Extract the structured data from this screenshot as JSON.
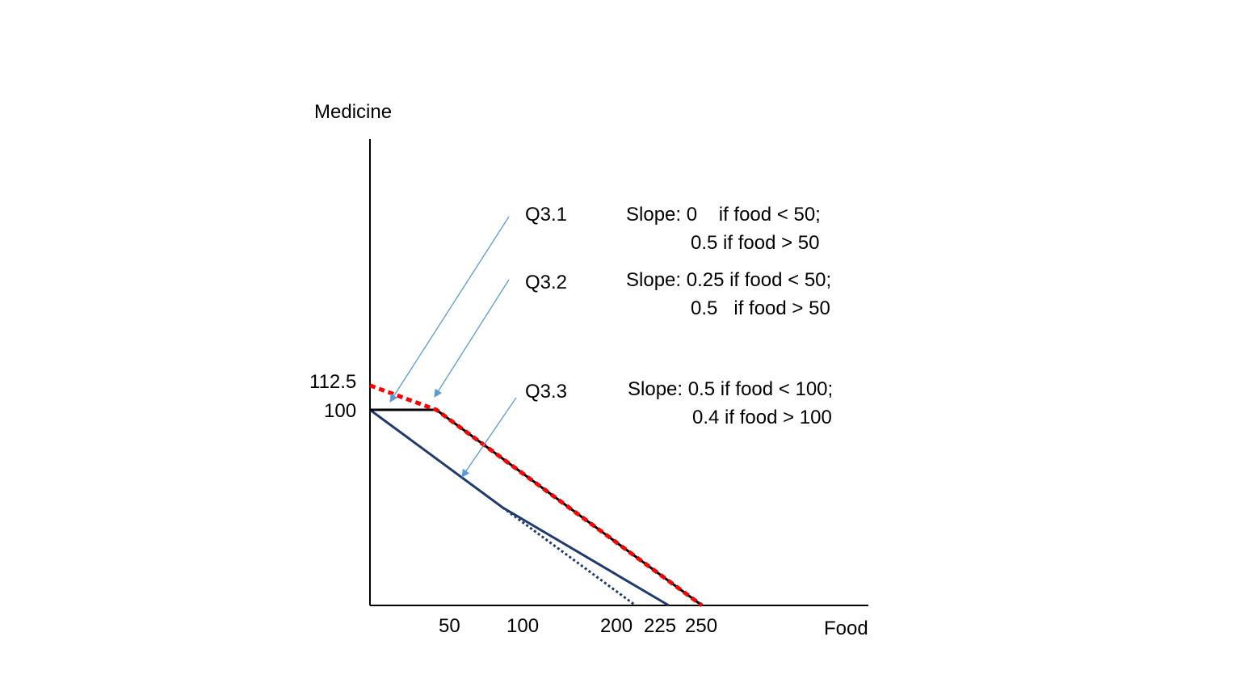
{
  "axes": {
    "y_label": "Medicine",
    "x_label": "Food",
    "y_ticks": [
      "112.5",
      "100"
    ],
    "x_ticks": [
      "50",
      "100",
      "200",
      "225",
      "250"
    ]
  },
  "questions": [
    {
      "label": "Q3.1",
      "slope_lines": [
        "Slope: 0    if food < 50;",
        "0.5 if food > 50"
      ]
    },
    {
      "label": "Q3.2",
      "slope_lines": [
        "Slope: 0.25 if food < 50;",
        "0.5   if food > 50"
      ]
    },
    {
      "label": "Q3.3",
      "slope_lines": [
        "Slope: 0.5 if food < 100;",
        "0.4 if food > 100"
      ]
    }
  ],
  "colors": {
    "q31_line": "#000000",
    "q32_line": "#ff0000",
    "q33_line": "#1f3a6e",
    "arrow": "#5b9bd5",
    "axis": "#000000"
  },
  "chart_data": {
    "type": "line",
    "xlabel": "Food",
    "ylabel": "Medicine",
    "series": [
      {
        "name": "Q3.1",
        "style": "solid",
        "x": [
          0,
          50,
          250
        ],
        "y": [
          100,
          100,
          0
        ]
      },
      {
        "name": "Q3.2",
        "style": "dotted",
        "x": [
          0,
          50,
          250
        ],
        "y": [
          112.5,
          100,
          0
        ]
      },
      {
        "name": "Q3.3",
        "style": "solid",
        "x": [
          0,
          100,
          225
        ],
        "y": [
          100,
          50,
          0
        ]
      },
      {
        "name": "Q3.3",
        "style": "dotted",
        "x": [
          100,
          200
        ],
        "y": [
          50,
          0
        ]
      }
    ]
  }
}
